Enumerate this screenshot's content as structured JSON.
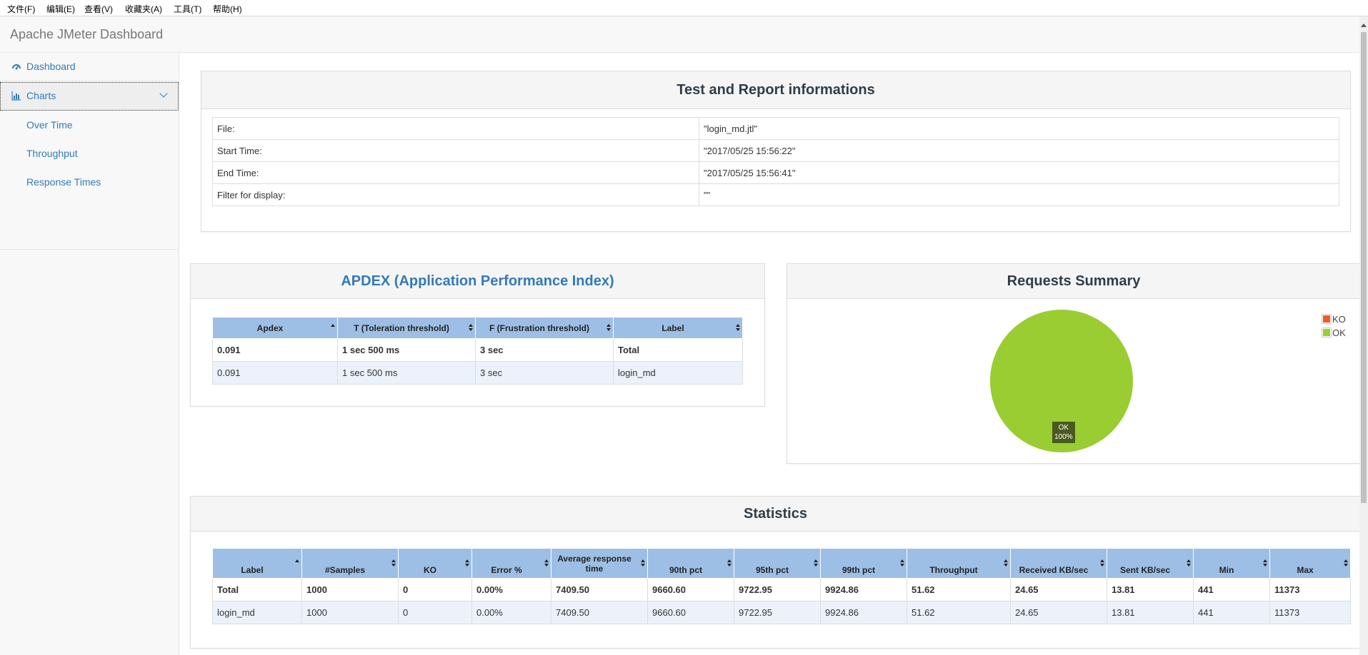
{
  "menubar": [
    "文件(F)",
    "编辑(E)",
    "查看(V)",
    "收藏夹(A)",
    "工具(T)",
    "帮助(H)"
  ],
  "brand": "Apache JMeter Dashboard",
  "sidebar": {
    "items": [
      {
        "label": "Dashboard",
        "icon": "dashboard-icon"
      },
      {
        "label": "Charts",
        "icon": "bar-chart-icon"
      }
    ],
    "subitems": [
      "Over Time",
      "Throughput",
      "Response Times"
    ]
  },
  "info": {
    "title": "Test and Report informations",
    "rows": [
      {
        "key": "File:",
        "value": "\"login_md.jtl\""
      },
      {
        "key": "Start Time:",
        "value": "\"2017/05/25 15:56:22\""
      },
      {
        "key": "End Time:",
        "value": "\"2017/05/25 15:56:41\""
      },
      {
        "key": "Filter for display:",
        "value": "\"\""
      }
    ]
  },
  "apdex": {
    "title": "APDEX (Application Performance Index)",
    "headers": [
      "Apdex",
      "T (Toleration threshold)",
      "F (Frustration threshold)",
      "Label"
    ],
    "rows": [
      [
        "0.091",
        "1 sec 500 ms",
        "3 sec",
        "Total"
      ],
      [
        "0.091",
        "1 sec 500 ms",
        "3 sec",
        "login_md"
      ]
    ]
  },
  "summary": {
    "title": "Requests Summary",
    "legend": [
      {
        "label": "KO",
        "color": "#f15a24"
      },
      {
        "label": "OK",
        "color": "#9acd32"
      }
    ],
    "slice_label": "OK",
    "slice_pct": "100%",
    "ok_fraction": 1.0
  },
  "stats": {
    "title": "Statistics",
    "headers": [
      "Label",
      "#Samples",
      "KO",
      "Error %",
      "Average response time",
      "90th pct",
      "95th pct",
      "99th pct",
      "Throughput",
      "Received KB/sec",
      "Sent KB/sec",
      "Min",
      "Max"
    ],
    "rows": [
      [
        "Total",
        "1000",
        "0",
        "0.00%",
        "7409.50",
        "9660.60",
        "9722.95",
        "9924.86",
        "51.62",
        "24.65",
        "13.81",
        "441",
        "11373"
      ],
      [
        "login_md",
        "1000",
        "0",
        "0.00%",
        "7409.50",
        "9660.60",
        "9722.95",
        "9924.86",
        "51.62",
        "24.65",
        "13.81",
        "441",
        "11373"
      ]
    ]
  }
}
